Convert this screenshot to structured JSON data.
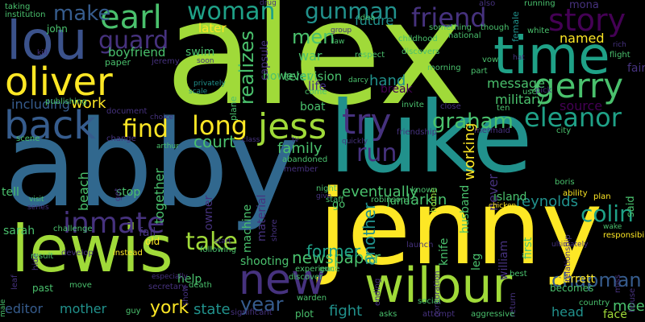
{
  "background": "#000000",
  "palette": [
    "#440154",
    "#46327e",
    "#365c8d",
    "#277f8e",
    "#1fa187",
    "#4ac16d",
    "#a0da39",
    "#fde725"
  ],
  "words": [
    "alex",
    "abby",
    "luke",
    "jenny",
    "lewis",
    "time",
    "wilbur",
    "lou",
    "oliver",
    "earl",
    "gerry",
    "back",
    "jess",
    "try",
    "new",
    "long",
    "eleanor",
    "inmate",
    "story",
    "friend",
    "find",
    "guard",
    "woman",
    "gunman",
    "take",
    "run",
    "make",
    "men",
    "graham",
    "colin",
    "year",
    "chapman",
    "york",
    "newspaper",
    "work",
    "court",
    "former",
    "family",
    "eventually",
    "larkin",
    "fight",
    "hand",
    "reynolds",
    "meet",
    "boyfriend",
    "later",
    "named",
    "military",
    "source",
    "future",
    "war",
    "including",
    "message",
    "television",
    "life",
    "editor",
    "mother",
    "state",
    "stop",
    "tell",
    "fall",
    "face",
    "head",
    "swim",
    "however",
    "boat",
    "help",
    "shooting",
    "break",
    "island",
    "garrett",
    "sarah",
    "fair",
    "mona",
    "june",
    "go",
    "old",
    "past",
    "becomes",
    "realizes",
    "another",
    "working",
    "never",
    "beach",
    "together",
    "husband",
    "knife",
    "leg",
    "william",
    "first",
    "owner",
    "material",
    "machine",
    "capsule",
    "said",
    "home",
    "plane",
    "female",
    "relationship",
    "male",
    "corporation",
    "return",
    "miss",
    "house",
    "ending",
    "show",
    "leaf",
    "hide",
    "get",
    "shore",
    "taking",
    "institution",
    "john",
    "paper",
    "jeremy",
    "document",
    "privately",
    "scale",
    "publishing",
    "scene",
    "change",
    "come",
    "darcy",
    "morning",
    "part",
    "use",
    "white",
    "pick",
    "invite",
    "ten",
    "close",
    "mermaid",
    "friendship",
    "class",
    "tv",
    "quickly",
    "known",
    "robinson",
    "staff",
    "abandoned",
    "member",
    "night",
    "give",
    "chicken",
    "responsibility",
    "plan",
    "ability",
    "boris",
    "city",
    "arthur",
    "visit",
    "series",
    "challenge",
    "instead",
    "develop",
    "result",
    "move",
    "especially",
    "secretary",
    "death",
    "following",
    "start",
    "discover",
    "experience",
    "gun",
    "warden",
    "significant",
    "plot",
    "asks",
    "attempt",
    "aggressive",
    "best",
    "country",
    "guy",
    "launch",
    "social",
    "idea",
    "group",
    "law",
    "childhood",
    "discovers",
    "national",
    "something",
    "though",
    "also",
    "running",
    "vow",
    "flight",
    "drug",
    "respect",
    "hat",
    "ultimately",
    "wake",
    "choice",
    "kill",
    "soon",
    "rich"
  ]
}
